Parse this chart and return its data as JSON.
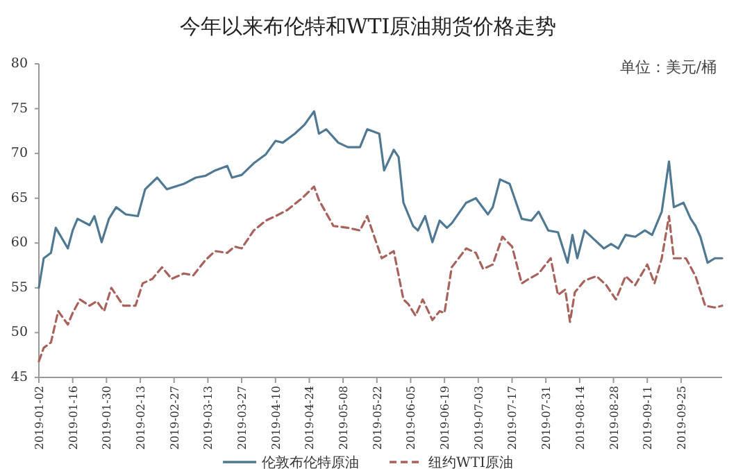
{
  "chart_data": {
    "type": "line",
    "title": "今年以来布伦特和WTI原油期货价格走势",
    "annotations": [
      "单位：美元/桶"
    ],
    "xlim": [
      "2019-01-02",
      "2019-10-12"
    ],
    "xticks": [
      "2019-01-02",
      "2019-01-16",
      "2019-01-30",
      "2019-02-13",
      "2019-02-27",
      "2019-03-13",
      "2019-03-27",
      "2019-04-10",
      "2019-04-24",
      "2019-05-08",
      "2019-05-22",
      "2019-06-05",
      "2019-06-19",
      "2019-07-03",
      "2019-07-17",
      "2019-07-31",
      "2019-08-14",
      "2019-08-28",
      "2019-09-11",
      "2019-09-25"
    ],
    "ylim": [
      45,
      80
    ],
    "yticks": [
      45,
      50,
      55,
      60,
      65,
      70,
      75,
      80
    ],
    "grid": false,
    "legend": "bottom",
    "series": [
      {
        "name": "伦敦布伦特原油",
        "color": "#4f7892",
        "line_style": "solid",
        "x": [
          "2019-01-02",
          "2019-01-04",
          "2019-01-07",
          "2019-01-09",
          "2019-01-14",
          "2019-01-16",
          "2019-01-18",
          "2019-01-23",
          "2019-01-25",
          "2019-01-28",
          "2019-01-31",
          "2019-02-03",
          "2019-02-07",
          "2019-02-12",
          "2019-02-15",
          "2019-02-20",
          "2019-02-24",
          "2019-03-03",
          "2019-03-08",
          "2019-03-12",
          "2019-03-16",
          "2019-03-21",
          "2019-03-23",
          "2019-03-27",
          "2019-04-01",
          "2019-04-06",
          "2019-04-10",
          "2019-04-13",
          "2019-04-18",
          "2019-04-22",
          "2019-04-26",
          "2019-04-28",
          "2019-05-01",
          "2019-05-06",
          "2019-05-10",
          "2019-05-15",
          "2019-05-18",
          "2019-05-23",
          "2019-05-25",
          "2019-05-29",
          "2019-05-31",
          "2019-06-02",
          "2019-06-06",
          "2019-06-08",
          "2019-06-11",
          "2019-06-14",
          "2019-06-17",
          "2019-06-20",
          "2019-06-22",
          "2019-06-28",
          "2019-07-02",
          "2019-07-07",
          "2019-07-09",
          "2019-07-12",
          "2019-07-16",
          "2019-07-21",
          "2019-07-25",
          "2019-07-28",
          "2019-08-01",
          "2019-08-05",
          "2019-08-09",
          "2019-08-11",
          "2019-08-13",
          "2019-08-16",
          "2019-08-20",
          "2019-08-24",
          "2019-08-27",
          "2019-08-30",
          "2019-09-02",
          "2019-09-06",
          "2019-09-10",
          "2019-09-13",
          "2019-09-17",
          "2019-09-20",
          "2019-09-22",
          "2019-09-26",
          "2019-09-29",
          "2019-10-01",
          "2019-10-03",
          "2019-10-06",
          "2019-10-09",
          "2019-10-12"
        ],
        "values": [
          55.0,
          58.3,
          58.9,
          61.7,
          59.4,
          61.4,
          62.7,
          62.0,
          63.0,
          60.1,
          62.7,
          64.0,
          63.2,
          63.0,
          66.0,
          67.3,
          66.0,
          66.6,
          67.3,
          67.5,
          68.1,
          68.6,
          67.3,
          67.6,
          68.9,
          69.9,
          71.4,
          71.2,
          72.2,
          73.2,
          74.7,
          72.2,
          72.7,
          71.2,
          70.7,
          70.7,
          72.7,
          72.2,
          68.1,
          70.4,
          69.6,
          64.5,
          61.9,
          61.4,
          63.0,
          60.1,
          62.5,
          61.7,
          62.2,
          64.5,
          65.0,
          63.2,
          64.0,
          67.1,
          66.6,
          62.7,
          62.5,
          63.5,
          61.4,
          61.2,
          57.8,
          60.9,
          58.3,
          61.4,
          60.4,
          59.4,
          59.9,
          59.4,
          60.9,
          60.7,
          61.4,
          60.9,
          63.5,
          69.1,
          64.0,
          64.5,
          62.7,
          61.9,
          60.7,
          57.8,
          58.3,
          58.3
        ]
      },
      {
        "name": "纽约WTI原油",
        "color": "#a8625c",
        "line_style": "dashed",
        "x": [
          "2019-01-02",
          "2019-01-04",
          "2019-01-07",
          "2019-01-10",
          "2019-01-14",
          "2019-01-16",
          "2019-01-19",
          "2019-01-23",
          "2019-01-26",
          "2019-01-29",
          "2019-02-01",
          "2019-02-06",
          "2019-02-11",
          "2019-02-14",
          "2019-02-18",
          "2019-02-22",
          "2019-02-26",
          "2019-03-03",
          "2019-03-07",
          "2019-03-12",
          "2019-03-16",
          "2019-03-21",
          "2019-03-24",
          "2019-03-27",
          "2019-04-01",
          "2019-04-06",
          "2019-04-10",
          "2019-04-15",
          "2019-04-21",
          "2019-04-26",
          "2019-04-28",
          "2019-05-04",
          "2019-05-10",
          "2019-05-15",
          "2019-05-18",
          "2019-05-24",
          "2019-05-29",
          "2019-06-02",
          "2019-06-04",
          "2019-06-07",
          "2019-06-10",
          "2019-06-14",
          "2019-06-17",
          "2019-06-19",
          "2019-06-22",
          "2019-06-28",
          "2019-07-02",
          "2019-07-05",
          "2019-07-09",
          "2019-07-13",
          "2019-07-17",
          "2019-07-21",
          "2019-07-24",
          "2019-07-28",
          "2019-08-02",
          "2019-08-05",
          "2019-08-08",
          "2019-08-10",
          "2019-08-12",
          "2019-08-16",
          "2019-08-21",
          "2019-08-25",
          "2019-08-29",
          "2019-09-02",
          "2019-09-06",
          "2019-09-11",
          "2019-09-14",
          "2019-09-17",
          "2019-09-20",
          "2019-09-22",
          "2019-09-27",
          "2019-10-01",
          "2019-10-05",
          "2019-10-09",
          "2019-10-12"
        ],
        "values": [
          46.8,
          48.3,
          48.9,
          52.4,
          50.9,
          52.2,
          53.7,
          53.0,
          53.5,
          52.4,
          55.0,
          53.0,
          53.0,
          55.5,
          56.0,
          57.3,
          56.0,
          56.6,
          56.4,
          58.1,
          59.1,
          58.9,
          59.6,
          59.4,
          61.4,
          62.5,
          63.0,
          63.7,
          65.0,
          66.3,
          64.8,
          61.9,
          61.7,
          61.4,
          63.0,
          58.3,
          59.1,
          53.7,
          53.2,
          51.9,
          53.7,
          51.4,
          52.4,
          52.2,
          57.3,
          59.4,
          58.9,
          57.1,
          57.6,
          60.7,
          59.6,
          55.5,
          56.0,
          56.6,
          58.3,
          54.2,
          54.8,
          51.2,
          54.5,
          55.8,
          56.3,
          55.3,
          53.7,
          56.3,
          55.3,
          57.6,
          55.5,
          58.3,
          63.0,
          58.3,
          58.3,
          56.3,
          53.0,
          52.8,
          53.0
        ]
      }
    ]
  }
}
